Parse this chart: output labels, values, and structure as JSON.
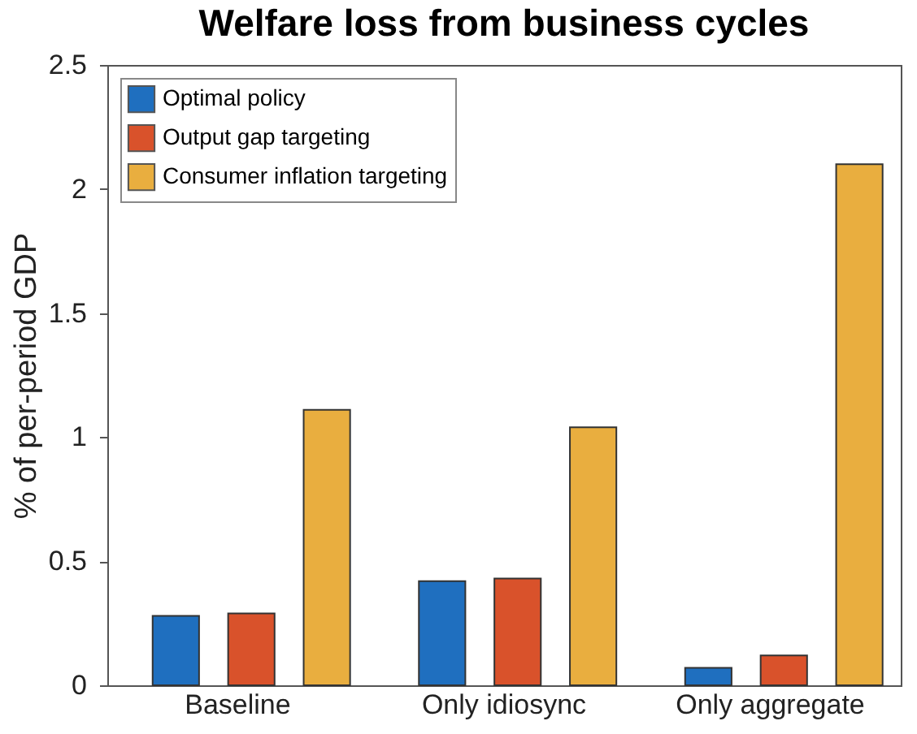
{
  "chart_data": {
    "type": "bar",
    "title": "Welfare loss from business cycles",
    "ylabel": "% of per-period GDP",
    "categories": [
      "Baseline",
      "Only idiosync",
      "Only aggregate"
    ],
    "series": [
      {
        "name": "Optimal policy",
        "color": "#1f6fbf",
        "values": [
          0.28,
          0.42,
          0.07
        ]
      },
      {
        "name": "Output gap targeting",
        "color": "#d9522b",
        "values": [
          0.29,
          0.43,
          0.12
        ]
      },
      {
        "name": "Consumer inflation targeting",
        "color": "#e9ae3f",
        "values": [
          1.11,
          1.04,
          2.1
        ]
      }
    ],
    "ylim": [
      0,
      2.5
    ],
    "yticks": [
      0,
      0.5,
      1,
      1.5,
      2,
      2.5
    ],
    "grid": false,
    "legend": "top left"
  }
}
